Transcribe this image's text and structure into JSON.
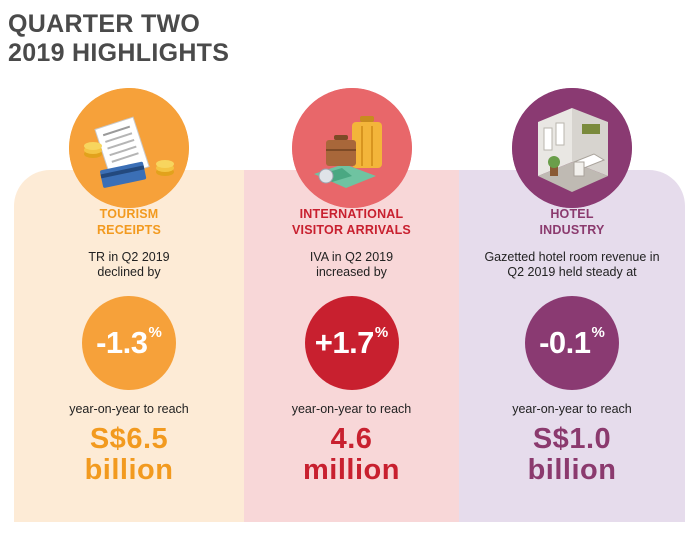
{
  "title": {
    "line1": "QUARTER TWO",
    "line2": "2019 HIGHLIGHTS"
  },
  "colors": {
    "title": "#4a4a4a",
    "panel_1": "#fdebd6",
    "panel_2": "#f8d7d8",
    "panel_3": "#e6dcec",
    "accent_1": "#f29a1f",
    "accent_2": "#c8202f",
    "accent_3": "#8b3a6e",
    "circle_1": "#f6a13a",
    "circle_2": "#d9434f",
    "circle_3": "#8a3a72"
  },
  "columns": [
    {
      "icon": "tourism-receipts-icon",
      "category_line1": "TOURISM",
      "category_line2": "RECEIPTS",
      "desc_line1": "TR in Q2 2019",
      "desc_line2": "declined by",
      "stat_value": "-1.3",
      "stat_unit": "%",
      "reach_text": "year-on-year to reach",
      "amount_line1": "S$6.5",
      "amount_line2": "billion"
    },
    {
      "icon": "luggage-travel-icon",
      "category_line1": "INTERNATIONAL",
      "category_line2": "VISITOR ARRIVALS",
      "desc_line1": "IVA in Q2 2019",
      "desc_line2": "increased by",
      "stat_value": "+1.7",
      "stat_unit": "%",
      "reach_text": "year-on-year to reach",
      "amount_line1": "4.6",
      "amount_line2": "million"
    },
    {
      "icon": "hotel-lobby-icon",
      "category_line1": "HOTEL",
      "category_line2": "INDUSTRY",
      "desc_line1": "Gazetted hotel room revenue in",
      "desc_line2": "Q2 2019 held steady at",
      "stat_value": "-0.1",
      "stat_unit": "%",
      "reach_text": "year-on-year to reach",
      "amount_line1": "S$1.0",
      "amount_line2": "billion"
    }
  ]
}
